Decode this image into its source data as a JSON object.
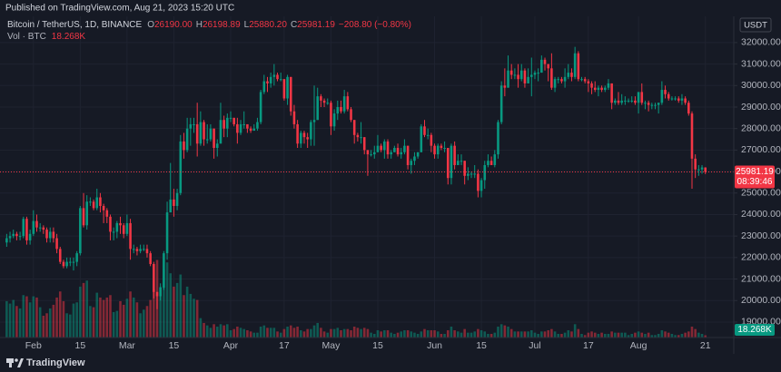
{
  "published": "Published on TradingView.com, Aug 21, 2023 15:20 UTC",
  "footer": "TradingView",
  "chart_data": {
    "type": "candlestick",
    "title": "Bitcoin / TetherUS, 1D, BINANCE",
    "ohlc_letters": [
      "O",
      "H",
      "L",
      "C"
    ],
    "ohlc_labels": [
      "26190.00",
      "26198.89",
      "25880.20",
      "25981.19"
    ],
    "change_label": "−208.80 (−0.80%)",
    "countdown": "08:39:46",
    "currency": "USDT",
    "up_color": "#089981",
    "down_color": "#f23645",
    "grid": true,
    "xlim": [
      -2,
      217.5
    ],
    "xticks": [
      {
        "value": 8,
        "label": "Feb"
      },
      {
        "value": 22,
        "label": "15"
      },
      {
        "value": 36,
        "label": "Mar"
      },
      {
        "value": 50,
        "label": "15"
      },
      {
        "value": 67,
        "label": "Apr"
      },
      {
        "value": 83,
        "label": "17"
      },
      {
        "value": 97,
        "label": "May"
      },
      {
        "value": 111,
        "label": "15"
      },
      {
        "value": 128,
        "label": "Jun"
      },
      {
        "value": 142,
        "label": "15"
      },
      {
        "value": 158,
        "label": "Jul"
      },
      {
        "value": 174,
        "label": "17"
      },
      {
        "value": 189,
        "label": "Aug"
      },
      {
        "value": 209,
        "label": "21"
      }
    ],
    "ylim": [
      18280,
      33220
    ],
    "yticks": [
      {
        "value": 19000,
        "label": "19000.00"
      },
      {
        "value": 20000,
        "label": "20000.00"
      },
      {
        "value": 21000,
        "label": "21000.00"
      },
      {
        "value": 22000,
        "label": "22000.00"
      },
      {
        "value": 23000,
        "label": "23000.00"
      },
      {
        "value": 24000,
        "label": "24000.00"
      },
      {
        "value": 25000,
        "label": "25000.00"
      },
      {
        "value": 26000,
        "label": "26000.00"
      },
      {
        "value": 27000,
        "label": "27000.00"
      },
      {
        "value": 28000,
        "label": "28000.00"
      },
      {
        "value": 29000,
        "label": "29000.00"
      },
      {
        "value": 30000,
        "label": "30000.00"
      },
      {
        "value": 31000,
        "label": "31000.00"
      },
      {
        "value": 32000,
        "label": "32000.00"
      }
    ],
    "open": [
      22700,
      22900,
      23000,
      23100,
      23000,
      23000,
      23800,
      22800,
      23100,
      23700,
      23400,
      23400,
      23300,
      22900,
      23200,
      22900,
      22400,
      21800,
      21600,
      21800,
      21800,
      21800,
      22200,
      24300,
      23500,
      24600,
      24600,
      24300,
      24800,
      24400,
      24200,
      23900,
      23200,
      23200,
      23600,
      23500,
      23100,
      23600,
      22400,
      22400,
      22300,
      22400,
      22400,
      22200,
      21700,
      20400,
      20200,
      20600,
      22200,
      24100,
      24700,
      24400,
      25000,
      27400,
      27000,
      28000,
      28200,
      28200,
      27300,
      28300,
      27500,
      27500,
      28000,
      27100,
      27300,
      28400,
      28000,
      28500,
      28500,
      28200,
      27800,
      28200,
      28200,
      28000,
      27900,
      28000,
      28300,
      29700,
      30200,
      30100,
      30400,
      30500,
      30300,
      30300,
      29400,
      30400,
      28800,
      28200,
      27300,
      27800,
      27600,
      27500,
      28300,
      28400,
      29500,
      29300,
      29200,
      29200,
      28100,
      28700,
      29000,
      28800,
      29500,
      28900,
      28400,
      27700,
      27600,
      27600,
      27000,
      26800,
      26800,
      26900,
      27200,
      27000,
      27400,
      26800,
      26900,
      27100,
      26800,
      26900,
      27200,
      26300,
      26500,
      26700,
      26900,
      28100,
      27700,
      27700,
      27200,
      26800,
      27200,
      27100,
      27100,
      25700,
      27200,
      26300,
      26500,
      26500,
      25800,
      25900,
      25900,
      25900,
      25100,
      25600,
      26300,
      26500,
      26300,
      26800,
      28300,
      30000,
      29900,
      30700,
      30500,
      30500,
      30300,
      30700,
      30100,
      30400,
      30500,
      30600,
      30600,
      31200,
      31000,
      30800,
      29900,
      30300,
      30300,
      30200,
      30400,
      30600,
      30400,
      31500,
      30300,
      30300,
      30200,
      30100,
      29900,
      29800,
      29900,
      29800,
      29900,
      30100,
      29200,
      29300,
      29200,
      29300,
      29300,
      29300,
      29300,
      29200,
      29700,
      29200,
      29200,
      29100,
      29100,
      29100,
      29200,
      29800,
      29600,
      29400,
      29400,
      29400,
      29300,
      29400,
      29200,
      28700,
      26600,
      26100,
      26100,
      26190
    ],
    "high": [
      23100,
      23200,
      23300,
      23200,
      23200,
      23900,
      23900,
      23300,
      24200,
      24000,
      23600,
      23500,
      23400,
      23400,
      23400,
      23100,
      22500,
      21900,
      22000,
      22000,
      22000,
      22300,
      24400,
      25000,
      24900,
      24800,
      24700,
      25200,
      25000,
      24500,
      24300,
      24000,
      23400,
      23700,
      23900,
      23600,
      24000,
      23800,
      22600,
      22500,
      22600,
      22600,
      22600,
      22300,
      21800,
      20400,
      20800,
      22300,
      24600,
      26400,
      25200,
      25200,
      27700,
      27800,
      28500,
      28500,
      28500,
      29200,
      28800,
      28400,
      28200,
      28200,
      28000,
      27500,
      29200,
      28600,
      28700,
      28800,
      28500,
      28500,
      28400,
      28800,
      28200,
      28100,
      28200,
      28500,
      29800,
      30500,
      30400,
      30600,
      31000,
      30600,
      30600,
      30300,
      30500,
      30400,
      29100,
      28400,
      27900,
      27900,
      27800,
      28400,
      30000,
      29900,
      29600,
      29400,
      29400,
      29300,
      28900,
      29300,
      29300,
      29800,
      29700,
      29000,
      28400,
      27800,
      28300,
      27600,
      27000,
      27000,
      27200,
      27700,
      27300,
      27500,
      27500,
      27000,
      27200,
      27300,
      27100,
      27500,
      27200,
      26600,
      26900,
      26900,
      28200,
      28400,
      28000,
      27800,
      27300,
      27300,
      27300,
      27400,
      27100,
      27300,
      27400,
      26800,
      26800,
      26500,
      26200,
      26000,
      26300,
      26100,
      25700,
      26500,
      26800,
      26700,
      27000,
      28400,
      30200,
      30800,
      31400,
      31000,
      30800,
      31000,
      31000,
      30800,
      30800,
      31300,
      30700,
      30800,
      31400,
      31300,
      31000,
      31500,
      30400,
      30400,
      30400,
      30800,
      31000,
      30800,
      31800,
      31600,
      30400,
      30400,
      30300,
      30200,
      30200,
      30000,
      30000,
      30000,
      30300,
      30100,
      29400,
      29700,
      29600,
      29500,
      29400,
      29500,
      29500,
      29700,
      30100,
      29300,
      29300,
      29200,
      29200,
      29200,
      30200,
      30000,
      29700,
      29500,
      29500,
      29500,
      29600,
      29500,
      29300,
      28800,
      26800,
      26300,
      26300,
      26198.89
    ],
    "low": [
      22500,
      22700,
      22900,
      22800,
      22800,
      22900,
      22600,
      22600,
      23000,
      23200,
      23200,
      23100,
      22700,
      22700,
      22700,
      22200,
      21700,
      21500,
      21500,
      21600,
      21400,
      21600,
      22100,
      23400,
      23300,
      24400,
      24200,
      24200,
      24100,
      23600,
      23600,
      22800,
      22800,
      22900,
      23100,
      22900,
      23000,
      21900,
      22200,
      22100,
      22200,
      22300,
      22000,
      21600,
      20100,
      19600,
      20000,
      20500,
      21900,
      24100,
      23900,
      24200,
      24900,
      26600,
      26900,
      27200,
      27800,
      26700,
      27200,
      27200,
      27300,
      27400,
      26600,
      26700,
      27300,
      27600,
      27600,
      28300,
      28100,
      27300,
      27700,
      28000,
      27800,
      27800,
      27900,
      27900,
      28200,
      29600,
      29700,
      29900,
      30000,
      30200,
      30200,
      29300,
      29100,
      28600,
      28000,
      27100,
      27100,
      27300,
      27100,
      27200,
      27200,
      28400,
      29000,
      29000,
      29100,
      27700,
      27900,
      28400,
      28700,
      28700,
      28800,
      28300,
      27300,
      27400,
      27300,
      26800,
      25800,
      26700,
      26600,
      26900,
      26900,
      26600,
      26600,
      26600,
      26900,
      26700,
      26600,
      26800,
      26100,
      25900,
      26300,
      26600,
      26900,
      27600,
      27500,
      26900,
      26600,
      26600,
      27000,
      26900,
      25400,
      25400,
      26100,
      26300,
      26300,
      25400,
      25600,
      25700,
      25700,
      24800,
      24800,
      25200,
      26200,
      26300,
      26200,
      26600,
      28200,
      29500,
      29900,
      30300,
      30300,
      29900,
      30200,
      29900,
      30100,
      29500,
      30300,
      30200,
      30600,
      30700,
      30200,
      29800,
      29700,
      30100,
      30100,
      29900,
      30300,
      30200,
      30300,
      30200,
      30200,
      30100,
      29700,
      29600,
      29700,
      29500,
      29700,
      29700,
      29800,
      28900,
      29100,
      29100,
      29100,
      29100,
      29200,
      29200,
      29100,
      28700,
      29100,
      28900,
      28800,
      28900,
      28900,
      28700,
      29100,
      29400,
      29300,
      29300,
      29300,
      29200,
      29100,
      29100,
      28600,
      25200,
      25700,
      25800,
      25900,
      25880.2
    ],
    "close": [
      22900,
      23000,
      23100,
      23000,
      23000,
      23800,
      22800,
      23100,
      23700,
      23400,
      23400,
      23300,
      22900,
      23200,
      22900,
      22400,
      21800,
      21600,
      21800,
      21800,
      21800,
      22200,
      24300,
      23500,
      24600,
      24600,
      24300,
      24800,
      24400,
      24200,
      23900,
      23200,
      23200,
      23600,
      23500,
      23100,
      23600,
      22400,
      22400,
      22300,
      22400,
      22400,
      22200,
      21700,
      20400,
      20200,
      20600,
      22200,
      24100,
      24700,
      24400,
      25000,
      27400,
      27000,
      28000,
      28200,
      28200,
      27300,
      28300,
      27500,
      27500,
      28000,
      27100,
      27300,
      28400,
      28000,
      28500,
      28500,
      28200,
      27800,
      28200,
      28200,
      28000,
      27900,
      28000,
      28300,
      29700,
      30200,
      30100,
      30400,
      30500,
      30300,
      30300,
      29400,
      30400,
      28800,
      28200,
      27300,
      27800,
      27600,
      27500,
      28300,
      28400,
      29500,
      29300,
      29200,
      29200,
      28100,
      28700,
      29000,
      28800,
      29500,
      28900,
      28400,
      27700,
      27600,
      27600,
      27000,
      26800,
      26800,
      26900,
      27200,
      27000,
      27400,
      26800,
      26900,
      27100,
      26800,
      26900,
      27200,
      26300,
      26500,
      26700,
      26900,
      28100,
      27700,
      27700,
      27200,
      26800,
      27200,
      27100,
      27100,
      25700,
      27200,
      26300,
      26500,
      26500,
      25800,
      25900,
      25900,
      25900,
      25100,
      25600,
      26300,
      26500,
      26300,
      26800,
      28300,
      30000,
      29900,
      30700,
      30500,
      30500,
      30300,
      30700,
      30100,
      30400,
      30500,
      30600,
      30600,
      31200,
      31000,
      30800,
      29900,
      30300,
      30300,
      30200,
      30400,
      30600,
      30400,
      31500,
      30300,
      30300,
      30200,
      30100,
      29900,
      29800,
      29900,
      29800,
      29900,
      30100,
      29200,
      29300,
      29200,
      29300,
      29300,
      29300,
      29300,
      29200,
      29700,
      29200,
      29200,
      29100,
      29100,
      29100,
      29200,
      29800,
      29600,
      29400,
      29400,
      29400,
      29300,
      29400,
      29200,
      28700,
      26600,
      26100,
      26100,
      26190,
      25981.19
    ],
    "volume": {
      "name": "Vol · BTC",
      "value_label": "18.268K",
      "ylim": [
        0,
        2650000
      ],
      "values": [
        300000,
        280000,
        310000,
        260000,
        240000,
        350000,
        340000,
        290000,
        340000,
        330000,
        250000,
        180000,
        200000,
        240000,
        270000,
        330000,
        380000,
        300000,
        200000,
        190000,
        280000,
        290000,
        420000,
        450000,
        470000,
        260000,
        250000,
        370000,
        330000,
        310000,
        330000,
        350000,
        210000,
        220000,
        300000,
        270000,
        320000,
        380000,
        330000,
        290000,
        200000,
        230000,
        260000,
        310000,
        400000,
        640000,
        420000,
        560000,
        620000,
        530000,
        420000,
        450000,
        520000,
        350000,
        420000,
        360000,
        320000,
        310000,
        160000,
        120000,
        100000,
        80000,
        110000,
        90000,
        110000,
        100000,
        110000,
        60000,
        70000,
        90000,
        80000,
        70000,
        60000,
        50000,
        40000,
        40000,
        90000,
        100000,
        80000,
        80000,
        80000,
        50000,
        40000,
        70000,
        90000,
        100000,
        80000,
        90000,
        60000,
        50000,
        70000,
        70000,
        100000,
        120000,
        80000,
        50000,
        40000,
        70000,
        70000,
        80000,
        60000,
        70000,
        70000,
        60000,
        90000,
        80000,
        70000,
        80000,
        70000,
        40000,
        30000,
        60000,
        50000,
        60000,
        60000,
        40000,
        30000,
        40000,
        50000,
        60000,
        60000,
        50000,
        40000,
        30000,
        50000,
        70000,
        60000,
        60000,
        60000,
        50000,
        30000,
        30000,
        60000,
        90000,
        60000,
        50000,
        40000,
        70000,
        40000,
        40000,
        50000,
        70000,
        60000,
        50000,
        30000,
        30000,
        40000,
        90000,
        110000,
        100000,
        90000,
        70000,
        50000,
        50000,
        50000,
        50000,
        50000,
        60000,
        40000,
        30000,
        50000,
        50000,
        60000,
        70000,
        50000,
        30000,
        30000,
        40000,
        60000,
        50000,
        110000,
        70000,
        30000,
        20000,
        40000,
        50000,
        40000,
        30000,
        40000,
        30000,
        30000,
        50000,
        40000,
        40000,
        40000,
        40000,
        20000,
        30000,
        40000,
        50000,
        40000,
        30000,
        40000,
        20000,
        20000,
        30000,
        60000,
        50000,
        40000,
        30000,
        20000,
        20000,
        30000,
        40000,
        50000,
        90000,
        70000,
        40000,
        30000,
        18268
      ]
    }
  }
}
